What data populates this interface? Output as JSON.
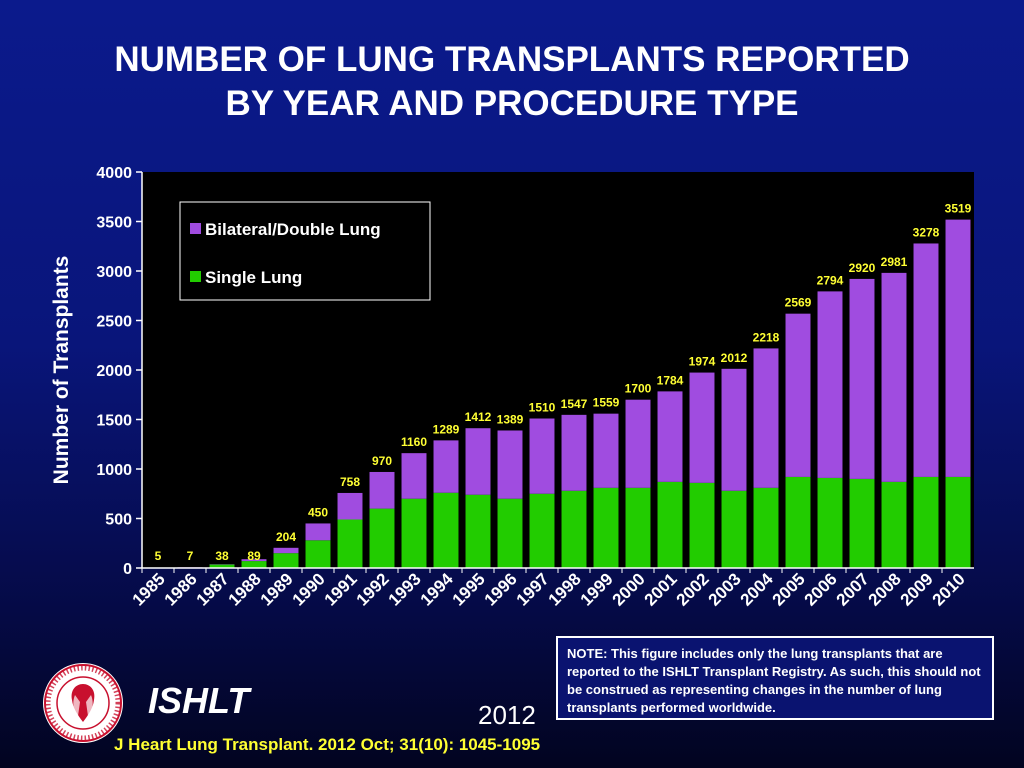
{
  "title_lines": [
    "NUMBER OF LUNG TRANSPLANTS REPORTED",
    "BY YEAR AND PROCEDURE TYPE"
  ],
  "chart_data": {
    "type": "bar",
    "stacked": true,
    "title": "NUMBER OF LUNG TRANSPLANTS REPORTED BY YEAR AND PROCEDURE TYPE",
    "xlabel": "",
    "ylabel": "Number of Transplants",
    "ylim": [
      0,
      4000
    ],
    "yticks": [
      0,
      500,
      1000,
      1500,
      2000,
      2500,
      3000,
      3500,
      4000
    ],
    "categories": [
      "1985",
      "1986",
      "1987",
      "1988",
      "1989",
      "1990",
      "1991",
      "1992",
      "1993",
      "1994",
      "1995",
      "1996",
      "1997",
      "1998",
      "1999",
      "2000",
      "2001",
      "2002",
      "2003",
      "2004",
      "2005",
      "2006",
      "2007",
      "2008",
      "2009",
      "2010"
    ],
    "totals": [
      5,
      7,
      38,
      89,
      204,
      450,
      758,
      970,
      1160,
      1289,
      1412,
      1389,
      1510,
      1547,
      1559,
      1700,
      1784,
      1974,
      2012,
      2218,
      2569,
      2794,
      2920,
      2981,
      3278,
      3519
    ],
    "series": [
      {
        "name": "Single Lung",
        "color": "#22cc00",
        "values": [
          5,
          5,
          35,
          70,
          150,
          280,
          490,
          600,
          700,
          760,
          740,
          700,
          750,
          780,
          810,
          810,
          870,
          860,
          780,
          810,
          920,
          910,
          900,
          870,
          920,
          920
        ]
      },
      {
        "name": "Bilateral/Double Lung",
        "color": "#a04ce0",
        "values": [
          0,
          2,
          3,
          19,
          54,
          170,
          268,
          370,
          460,
          529,
          672,
          689,
          760,
          767,
          749,
          890,
          914,
          1114,
          1232,
          1408,
          1649,
          1884,
          2020,
          2111,
          2358,
          2599
        ]
      }
    ],
    "legend": [
      "Bilateral/Double Lung",
      "Single Lung"
    ],
    "legend_position": "top-left",
    "grid": false,
    "label_color": "#ffff33"
  },
  "note": "NOTE: This figure includes only the lung transplants that are reported to the ISHLT Transplant Registry.  As such, this should not be construed as representing changes in the number of lung transplants performed worldwide.",
  "brand": "ISHLT",
  "year": "2012",
  "citation": "J Heart Lung Transplant.  2012 Oct; 31(10): 1045-1095",
  "logo_text": "INTERNATIONAL SOCIETY FOR HEART & LUNG TRANSPLANTATION"
}
